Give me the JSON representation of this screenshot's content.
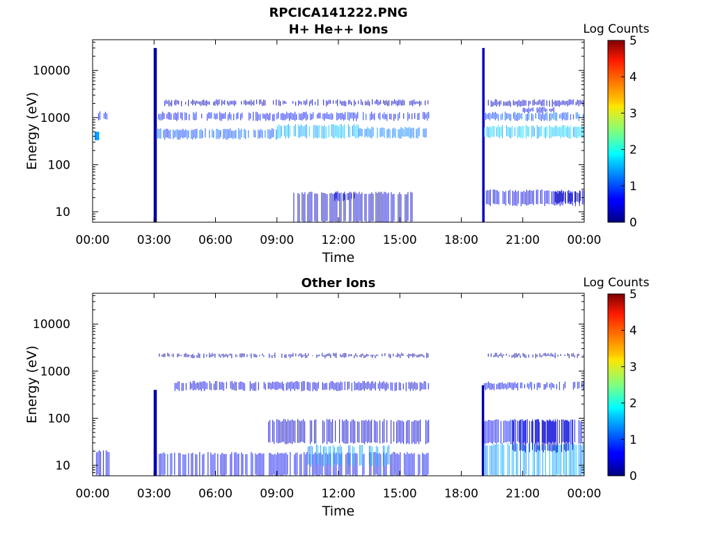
{
  "figure": {
    "file_title": "RPCICA141222.PNG"
  },
  "chart_data": [
    {
      "type": "heatmap",
      "title": "H+ He++ Ions",
      "xlabel": "Time",
      "ylabel": "Energy (eV)",
      "x_ticks": [
        "00:00",
        "03:00",
        "06:00",
        "09:00",
        "12:00",
        "15:00",
        "18:00",
        "21:00",
        "00:00"
      ],
      "xlim_hours": [
        0,
        24
      ],
      "y_scale": "log",
      "y_ticks": [
        10,
        100,
        1000,
        10000
      ],
      "y_tick_labels": [
        "10",
        "100",
        "1000",
        "10000"
      ],
      "ylim": [
        6,
        45000
      ],
      "colorbar": {
        "title": "Log Counts",
        "ticks": [
          "0",
          "1",
          "2",
          "3",
          "4",
          "5"
        ],
        "range": [
          0,
          5
        ],
        "colormap": "jet"
      },
      "features": [
        {
          "t": [
            0.1,
            0.3
          ],
          "e": [
            330,
            500
          ],
          "level": 1.3
        },
        {
          "t": [
            0.2,
            0.7
          ],
          "e": [
            900,
            1300
          ],
          "level": 0.6
        },
        {
          "t": [
            2.98,
            3.1
          ],
          "e": [
            6,
            30000
          ],
          "level": 0.2
        },
        {
          "t": [
            3.1,
            9.0
          ],
          "e": [
            360,
            560
          ],
          "level": 1.0
        },
        {
          "t": [
            9.0,
            13.0
          ],
          "e": [
            380,
            680
          ],
          "level": 1.5
        },
        {
          "t": [
            13.0,
            16.4
          ],
          "e": [
            380,
            600
          ],
          "level": 1.2
        },
        {
          "t": [
            3.2,
            16.4
          ],
          "e": [
            900,
            1250
          ],
          "level": 0.7
        },
        {
          "t": [
            3.5,
            16.4
          ],
          "e": [
            1850,
            2300
          ],
          "level": 0.3
        },
        {
          "t": [
            9.8,
            15.6
          ],
          "e": [
            6,
            25
          ],
          "level": 0.3
        },
        {
          "t": [
            11.8,
            12.8
          ],
          "e": [
            18,
            26
          ],
          "level": 0.5
        },
        {
          "t": [
            19.02,
            19.12
          ],
          "e": [
            6,
            30000
          ],
          "level": 0.2
        },
        {
          "t": [
            19.1,
            24.0
          ],
          "e": [
            380,
            660
          ],
          "level": 1.6
        },
        {
          "t": [
            19.1,
            24.0
          ],
          "e": [
            900,
            1250
          ],
          "level": 1.0
        },
        {
          "t": [
            19.3,
            24.0
          ],
          "e": [
            1800,
            2300
          ],
          "level": 0.4
        },
        {
          "t": [
            21.0,
            22.5
          ],
          "e": [
            1300,
            1600
          ],
          "level": 0.6
        },
        {
          "t": [
            19.2,
            24.0
          ],
          "e": [
            14,
            28
          ],
          "level": 0.5
        },
        {
          "t": [
            22.5,
            23.8
          ],
          "e": [
            16,
            26
          ],
          "level": 0.2
        }
      ]
    },
    {
      "type": "heatmap",
      "title": "Other Ions",
      "xlabel": "Time",
      "ylabel": "Energy (eV)",
      "x_ticks": [
        "00:00",
        "03:00",
        "06:00",
        "09:00",
        "12:00",
        "15:00",
        "18:00",
        "21:00",
        "00:00"
      ],
      "xlim_hours": [
        0,
        24
      ],
      "y_scale": "log",
      "y_ticks": [
        10,
        100,
        1000,
        10000
      ],
      "y_tick_labels": [
        "10",
        "100",
        "1000",
        "10000"
      ],
      "ylim": [
        6,
        45000
      ],
      "colorbar": {
        "title": "Log Counts",
        "ticks": [
          "0",
          "1",
          "2",
          "3",
          "4",
          "5"
        ],
        "range": [
          0,
          5
        ],
        "colormap": "jet"
      },
      "features": [
        {
          "t": [
            0.1,
            0.8
          ],
          "e": [
            6,
            20
          ],
          "level": 0.5
        },
        {
          "t": [
            2.98,
            3.1
          ],
          "e": [
            6,
            400
          ],
          "level": 0.3
        },
        {
          "t": [
            3.1,
            16.4
          ],
          "e": [
            6,
            18
          ],
          "level": 0.6
        },
        {
          "t": [
            10.5,
            14.5
          ],
          "e": [
            10,
            26
          ],
          "level": 1.4
        },
        {
          "t": [
            4.0,
            16.4
          ],
          "e": [
            400,
            580
          ],
          "level": 0.5
        },
        {
          "t": [
            3.1,
            16.4
          ],
          "e": [
            2000,
            2300
          ],
          "level": 0.2
        },
        {
          "t": [
            8.5,
            16.4
          ],
          "e": [
            30,
            90
          ],
          "level": 0.4
        },
        {
          "t": [
            19.0,
            19.1
          ],
          "e": [
            6,
            500
          ],
          "level": 0.3
        },
        {
          "t": [
            19.1,
            24.0
          ],
          "e": [
            420,
            560
          ],
          "level": 0.6
        },
        {
          "t": [
            19.1,
            24.0
          ],
          "e": [
            6,
            28
          ],
          "level": 1.4
        },
        {
          "t": [
            20.5,
            23.5
          ],
          "e": [
            20,
            90
          ],
          "level": 0.3
        },
        {
          "t": [
            19.1,
            24.0
          ],
          "e": [
            30,
            90
          ],
          "level": 0.6
        },
        {
          "t": [
            19.3,
            24.0
          ],
          "e": [
            2000,
            2300
          ],
          "level": 0.2
        }
      ]
    }
  ]
}
